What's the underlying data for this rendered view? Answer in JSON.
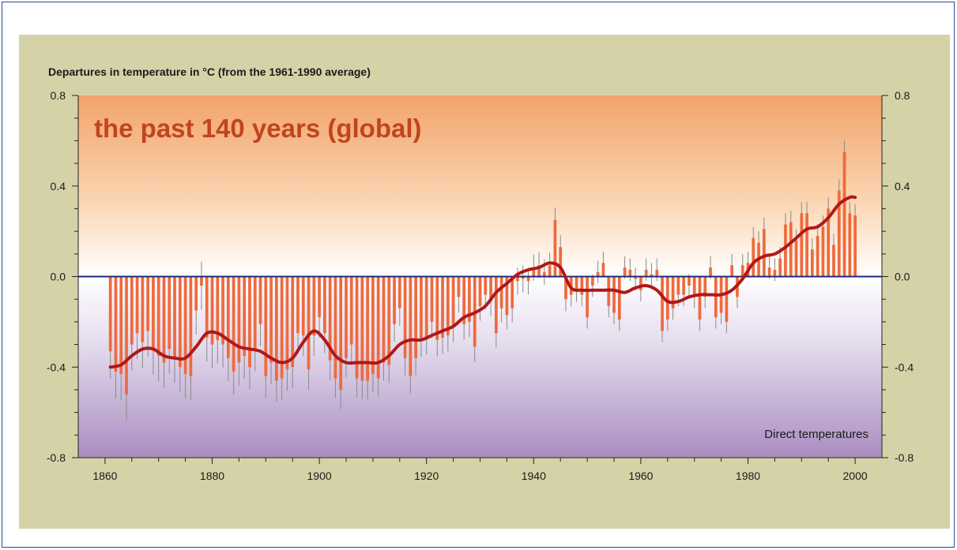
{
  "chart_data": {
    "type": "bar",
    "title": "the past 140 years (global)",
    "ylabel": "Departures in temperature in °C (from the 1961-1990 average)",
    "annotation": "Direct temperatures",
    "xlim": [
      1855,
      2005
    ],
    "ylim": [
      -0.8,
      0.8
    ],
    "x_ticks": [
      1860,
      1880,
      1900,
      1920,
      1940,
      1960,
      1980,
      2000
    ],
    "y_ticks": [
      -0.8,
      -0.4,
      0.0,
      0.4,
      0.8
    ],
    "y_tick_labels": [
      "-0.8",
      "-0.4",
      "0.0",
      "0.4",
      "0.8"
    ],
    "colors": {
      "bars": "#ef6a3c",
      "smooth": "#b01818",
      "zero_line": "#1d2a7a",
      "error_bars": "#8a8a8a",
      "title": "#c0451e",
      "bg_top": "#f2a36a",
      "bg_bottom": "#a98dc0"
    },
    "series": [
      {
        "type": "bar",
        "x": [
          1861,
          1862,
          1863,
          1864,
          1865,
          1866,
          1867,
          1868,
          1869,
          1870,
          1871,
          1872,
          1873,
          1874,
          1875,
          1876,
          1877,
          1878,
          1879,
          1880,
          1881,
          1882,
          1883,
          1884,
          1885,
          1886,
          1887,
          1888,
          1889,
          1890,
          1891,
          1892,
          1893,
          1894,
          1895,
          1896,
          1897,
          1898,
          1899,
          1900,
          1901,
          1902,
          1903,
          1904,
          1905,
          1906,
          1907,
          1908,
          1909,
          1910,
          1911,
          1912,
          1913,
          1914,
          1915,
          1916,
          1917,
          1918,
          1919,
          1920,
          1921,
          1922,
          1923,
          1924,
          1925,
          1926,
          1927,
          1928,
          1929,
          1930,
          1931,
          1932,
          1933,
          1934,
          1935,
          1936,
          1937,
          1938,
          1939,
          1940,
          1941,
          1942,
          1943,
          1944,
          1945,
          1946,
          1947,
          1948,
          1949,
          1950,
          1951,
          1952,
          1953,
          1954,
          1955,
          1956,
          1957,
          1958,
          1959,
          1960,
          1961,
          1962,
          1963,
          1964,
          1965,
          1966,
          1967,
          1968,
          1969,
          1970,
          1971,
          1972,
          1973,
          1974,
          1975,
          1976,
          1977,
          1978,
          1979,
          1980,
          1981,
          1982,
          1983,
          1984,
          1985,
          1986,
          1987,
          1988,
          1989,
          1990,
          1991,
          1992,
          1993,
          1994,
          1995,
          1996,
          1997,
          1998,
          1999,
          2000
        ],
        "values": [
          -0.33,
          -0.42,
          -0.43,
          -0.52,
          -0.3,
          -0.25,
          -0.29,
          -0.24,
          -0.32,
          -0.35,
          -0.38,
          -0.32,
          -0.36,
          -0.4,
          -0.43,
          -0.44,
          -0.15,
          -0.04,
          -0.27,
          -0.3,
          -0.28,
          -0.3,
          -0.36,
          -0.42,
          -0.38,
          -0.35,
          -0.4,
          -0.32,
          -0.21,
          -0.44,
          -0.38,
          -0.46,
          -0.45,
          -0.41,
          -0.4,
          -0.25,
          -0.26,
          -0.41,
          -0.26,
          -0.18,
          -0.25,
          -0.37,
          -0.45,
          -0.5,
          -0.36,
          -0.3,
          -0.45,
          -0.46,
          -0.46,
          -0.43,
          -0.45,
          -0.38,
          -0.39,
          -0.21,
          -0.14,
          -0.36,
          -0.44,
          -0.36,
          -0.28,
          -0.27,
          -0.2,
          -0.28,
          -0.27,
          -0.26,
          -0.22,
          -0.09,
          -0.21,
          -0.2,
          -0.31,
          -0.13,
          -0.08,
          -0.11,
          -0.25,
          -0.14,
          -0.17,
          -0.14,
          -0.02,
          -0.01,
          -0.02,
          0.04,
          0.05,
          0.02,
          0.05,
          0.25,
          0.13,
          -0.1,
          -0.08,
          -0.06,
          -0.08,
          -0.18,
          -0.04,
          0.02,
          0.06,
          -0.13,
          -0.16,
          -0.19,
          0.04,
          0.03,
          -0.01,
          -0.06,
          0.03,
          0.01,
          0.03,
          -0.24,
          -0.19,
          -0.14,
          -0.08,
          -0.08,
          -0.04,
          -0.09,
          -0.19,
          -0.09,
          0.04,
          -0.18,
          -0.16,
          -0.2,
          0.05,
          -0.09,
          0.05,
          0.06,
          0.17,
          0.15,
          0.21,
          0.04,
          0.03,
          0.08,
          0.23,
          0.24,
          0.16,
          0.28,
          0.28,
          0.12,
          0.18,
          0.22,
          0.3,
          0.14,
          0.38,
          0.55,
          0.28,
          0.27
        ]
      },
      {
        "type": "line",
        "x": [
          1861,
          1863,
          1865,
          1867,
          1869,
          1871,
          1873,
          1875,
          1877,
          1879,
          1881,
          1883,
          1885,
          1887,
          1889,
          1891,
          1893,
          1895,
          1897,
          1899,
          1901,
          1903,
          1905,
          1907,
          1909,
          1911,
          1913,
          1915,
          1917,
          1919,
          1921,
          1923,
          1925,
          1927,
          1929,
          1931,
          1933,
          1935,
          1937,
          1939,
          1941,
          1943,
          1945,
          1947,
          1949,
          1951,
          1953,
          1955,
          1957,
          1959,
          1961,
          1963,
          1965,
          1967,
          1969,
          1971,
          1973,
          1975,
          1977,
          1979,
          1981,
          1983,
          1985,
          1987,
          1989,
          1991,
          1993,
          1995,
          1997,
          1999,
          2000
        ],
        "values": [
          -0.4,
          -0.39,
          -0.35,
          -0.32,
          -0.32,
          -0.35,
          -0.36,
          -0.36,
          -0.31,
          -0.25,
          -0.25,
          -0.28,
          -0.31,
          -0.32,
          -0.33,
          -0.36,
          -0.38,
          -0.36,
          -0.29,
          -0.24,
          -0.28,
          -0.35,
          -0.38,
          -0.38,
          -0.38,
          -0.38,
          -0.35,
          -0.3,
          -0.28,
          -0.28,
          -0.26,
          -0.24,
          -0.22,
          -0.18,
          -0.16,
          -0.13,
          -0.07,
          -0.03,
          0.01,
          0.03,
          0.04,
          0.06,
          0.04,
          -0.05,
          -0.06,
          -0.06,
          -0.06,
          -0.06,
          -0.07,
          -0.05,
          -0.04,
          -0.06,
          -0.11,
          -0.11,
          -0.09,
          -0.08,
          -0.08,
          -0.08,
          -0.06,
          -0.01,
          0.06,
          0.09,
          0.1,
          0.13,
          0.17,
          0.21,
          0.22,
          0.26,
          0.32,
          0.35,
          0.35
        ]
      }
    ]
  }
}
